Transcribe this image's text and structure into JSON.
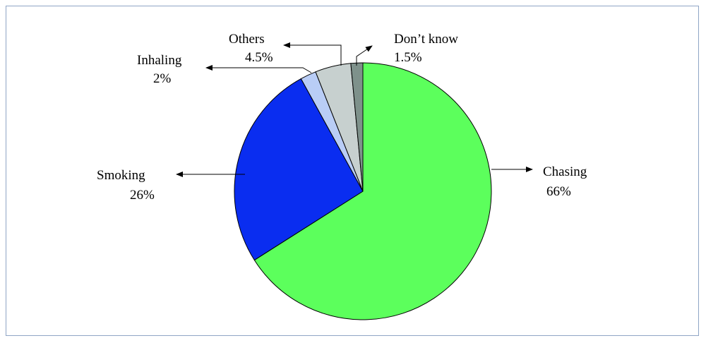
{
  "chart_data": {
    "type": "pie",
    "slices": [
      {
        "label": "Chasing",
        "value": 66,
        "value_label": "66%",
        "color": "#5CFF5C"
      },
      {
        "label": "Smoking",
        "value": 26,
        "value_label": "26%",
        "color": "#0A2DF0"
      },
      {
        "label": "Inhaling",
        "value": 2,
        "value_label": "2%",
        "color": "#B9CDF6"
      },
      {
        "label": "Others",
        "value": 4.5,
        "value_label": "4.5%",
        "color": "#C7D0CF"
      },
      {
        "label": "Don’t know",
        "value": 1.5,
        "value_label": "1.5%",
        "color": "#7E918B"
      }
    ],
    "legend": "none",
    "colors": {
      "border": "#8FA5C5",
      "slice_edge": "#000000"
    }
  }
}
